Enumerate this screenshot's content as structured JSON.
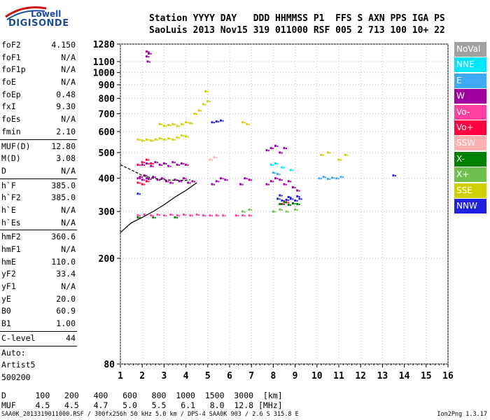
{
  "logo": {
    "line1": "Lowell",
    "line2": "DIGISONDE"
  },
  "header": {
    "labels": [
      "Station",
      "YYYY",
      "DAY",
      "DDD",
      "HHMMSS",
      "P1",
      "FFS",
      "S",
      "AXN",
      "PPS",
      "IGA",
      "PS"
    ],
    "values": [
      "SaoLuis",
      "2013",
      "Nov15",
      "319",
      "011000",
      "RSF",
      "005",
      "2",
      "713",
      "100",
      "10+",
      "22"
    ]
  },
  "params": {
    "group1": [
      {
        "name": "foF2",
        "value": "4.150"
      },
      {
        "name": "foF1",
        "value": "N/A"
      },
      {
        "name": "foF1p",
        "value": "N/A"
      },
      {
        "name": "foE",
        "value": "N/A"
      },
      {
        "name": "foEp",
        "value": "0.48"
      },
      {
        "name": "fxI",
        "value": "9.30"
      },
      {
        "name": "foEs",
        "value": "N/A"
      },
      {
        "name": "fmin",
        "value": "2.10"
      }
    ],
    "group2": [
      {
        "name": "MUF(D)",
        "value": "12.80"
      },
      {
        "name": "M(D)",
        "value": "3.08"
      },
      {
        "name": "D",
        "value": "N/A"
      }
    ],
    "group3": [
      {
        "name": "h`F",
        "value": "385.0"
      },
      {
        "name": "h`F2",
        "value": "385.0"
      },
      {
        "name": "h`E",
        "value": "N/A"
      },
      {
        "name": "h`Es",
        "value": "N/A"
      }
    ],
    "group4": [
      {
        "name": "hmF2",
        "value": "360.6"
      },
      {
        "name": "hmF1",
        "value": "N/A"
      },
      {
        "name": "hmE",
        "value": "110.0"
      },
      {
        "name": "yF2",
        "value": "33.4"
      },
      {
        "name": "yF1",
        "value": "N/A"
      },
      {
        "name": "yE",
        "value": "20.0"
      },
      {
        "name": "B0",
        "value": "60.9"
      },
      {
        "name": "B1",
        "value": "1.00"
      }
    ],
    "group5": [
      {
        "name": "C-level",
        "value": "44"
      }
    ],
    "group6": [
      "Auto:",
      "Artist5",
      "500200"
    ]
  },
  "legend": [
    {
      "label": "NoVal",
      "color": "#a0a0a0"
    },
    {
      "label": "NNE",
      "color": "#00e5ff"
    },
    {
      "label": "E",
      "color": "#3fa9f5"
    },
    {
      "label": "W",
      "color": "#a000a0"
    },
    {
      "label": "Vo-",
      "color": "#ff40a0"
    },
    {
      "label": "Vo+",
      "color": "#ff0040"
    },
    {
      "label": "SSW",
      "color": "#ffb0b0"
    },
    {
      "label": "X-",
      "color": "#008000"
    },
    {
      "label": "X+",
      "color": "#70c050"
    },
    {
      "label": "SSE",
      "color": "#d0d000"
    },
    {
      "label": "NNW",
      "color": "#2020e0"
    }
  ],
  "bottom_table": {
    "row1_label": "D",
    "row1_values": [
      "100",
      "200",
      "400",
      "600",
      "800",
      "1000",
      "1500",
      "3000",
      "[km]"
    ],
    "row2_label": "MUF",
    "row2_values": [
      "4.5",
      "4.5",
      "4.7",
      "5.0",
      "5.5",
      "6.1",
      "8.0",
      "12.8",
      "[MHz]"
    ]
  },
  "footer": {
    "left": "SAA0K_2013319011000.RSF / 300fx256h 50 kHz 5.0 km / DPS-4 SAA0K 903 / 2.6 S 315.8 E",
    "right": "Ion2Png 1.3.17"
  },
  "chart_data": {
    "type": "scatter",
    "xlim": [
      1,
      16
    ],
    "ylim": [
      80,
      1280
    ],
    "y_scale": "log",
    "x_ticks": [
      1,
      2,
      3,
      4,
      5,
      6,
      7,
      8,
      9,
      10,
      11,
      12,
      13,
      14,
      15,
      16
    ],
    "y_ticks": [
      80,
      200,
      300,
      400,
      500,
      600,
      700,
      800,
      900,
      1000,
      1100,
      1280
    ],
    "grid": true,
    "xlabel": "",
    "ylabel": "",
    "series": [
      {
        "name": "W",
        "color": "#a000a0",
        "points": [
          [
            1.8,
            400
          ],
          [
            1.9,
            405
          ],
          [
            2.0,
            395
          ],
          [
            2.1,
            410
          ],
          [
            2.2,
            400
          ],
          [
            2.3,
            398
          ],
          [
            2.5,
            405
          ],
          [
            2.7,
            395
          ],
          [
            2.9,
            400
          ],
          [
            3.1,
            390
          ],
          [
            3.3,
            385
          ],
          [
            3.5,
            395
          ],
          [
            3.7,
            390
          ],
          [
            3.9,
            400
          ],
          [
            4.1,
            385
          ],
          [
            4.3,
            390
          ],
          [
            2.0,
            450
          ],
          [
            2.2,
            455
          ],
          [
            2.4,
            445
          ],
          [
            2.6,
            460
          ],
          [
            2.8,
            450
          ],
          [
            3.0,
            455
          ],
          [
            3.2,
            445
          ],
          [
            3.4,
            460
          ],
          [
            3.6,
            450
          ],
          [
            3.8,
            455
          ],
          [
            4.0,
            450
          ],
          [
            2.2,
            1200
          ],
          [
            2.2,
            1150
          ],
          [
            2.25,
            1100
          ],
          [
            2.3,
            1180
          ],
          [
            5.2,
            380
          ],
          [
            5.4,
            390
          ],
          [
            5.6,
            400
          ],
          [
            5.8,
            395
          ],
          [
            6.5,
            380
          ],
          [
            6.7,
            400
          ],
          [
            6.9,
            395
          ],
          [
            7.7,
            380
          ],
          [
            7.9,
            390
          ],
          [
            8.1,
            400
          ],
          [
            8.3,
            395
          ],
          [
            8.5,
            380
          ],
          [
            8.7,
            390
          ],
          [
            8.9,
            370
          ],
          [
            9.1,
            360
          ],
          [
            7.7,
            510
          ],
          [
            7.9,
            520
          ],
          [
            8.1,
            530
          ],
          [
            8.3,
            500
          ],
          [
            8.5,
            520
          ]
        ]
      },
      {
        "name": "SSE",
        "color": "#d0d000",
        "points": [
          [
            2.8,
            640
          ],
          [
            3.0,
            630
          ],
          [
            3.2,
            635
          ],
          [
            3.4,
            640
          ],
          [
            3.6,
            630
          ],
          [
            3.8,
            640
          ],
          [
            4.0,
            650
          ],
          [
            4.2,
            645
          ],
          [
            1.8,
            560
          ],
          [
            2.0,
            555
          ],
          [
            2.2,
            560
          ],
          [
            2.4,
            555
          ],
          [
            2.6,
            560
          ],
          [
            2.8,
            565
          ],
          [
            3.0,
            560
          ],
          [
            3.2,
            565
          ],
          [
            3.4,
            560
          ],
          [
            3.6,
            570
          ],
          [
            3.8,
            580
          ],
          [
            4.0,
            575
          ],
          [
            4.4,
            700
          ],
          [
            4.6,
            720
          ],
          [
            4.8,
            760
          ],
          [
            5.0,
            780
          ],
          [
            4.9,
            850
          ],
          [
            6.6,
            650
          ],
          [
            6.8,
            640
          ],
          [
            10.2,
            490
          ],
          [
            10.5,
            500
          ],
          [
            11.0,
            470
          ],
          [
            11.3,
            490
          ]
        ]
      },
      {
        "name": "NNW",
        "color": "#2020e0",
        "points": [
          [
            8.2,
            335
          ],
          [
            8.4,
            330
          ],
          [
            8.6,
            332
          ],
          [
            8.8,
            335
          ],
          [
            9.0,
            330
          ],
          [
            9.2,
            335
          ],
          [
            8.3,
            345
          ],
          [
            8.7,
            340
          ],
          [
            9.1,
            342
          ],
          [
            5.2,
            650
          ],
          [
            5.4,
            655
          ],
          [
            5.6,
            660
          ],
          [
            13.5,
            410
          ],
          [
            1.8,
            350
          ]
        ]
      },
      {
        "name": "Vo+",
        "color": "#ff0040",
        "points": [
          [
            1.8,
            450
          ],
          [
            2.0,
            460
          ],
          [
            2.2,
            470
          ],
          [
            2.4,
            455
          ],
          [
            1.8,
            385
          ],
          [
            2.0,
            380
          ],
          [
            2.2,
            390
          ],
          [
            8.4,
            320
          ],
          [
            8.6,
            325
          ]
        ]
      },
      {
        "name": "X-",
        "color": "#008000",
        "points": [
          [
            8.3,
            320
          ],
          [
            8.5,
            325
          ],
          [
            8.7,
            318
          ],
          [
            8.9,
            322
          ],
          [
            9.1,
            320
          ],
          [
            1.8,
            285
          ],
          [
            2.5,
            285
          ],
          [
            3.5,
            285
          ]
        ]
      },
      {
        "name": "E",
        "color": "#3fa9f5",
        "points": [
          [
            10.1,
            400
          ],
          [
            10.3,
            405
          ],
          [
            10.5,
            398
          ],
          [
            10.7,
            402
          ],
          [
            10.9,
            400
          ],
          [
            11.1,
            405
          ],
          [
            8.0,
            420
          ],
          [
            8.2,
            415
          ]
        ]
      },
      {
        "name": "Vo-",
        "color": "#ff40a0",
        "points": [
          [
            1.8,
            290
          ],
          [
            2.1,
            292
          ],
          [
            2.4,
            290
          ],
          [
            2.7,
            292
          ],
          [
            3.0,
            290
          ],
          [
            3.3,
            292
          ],
          [
            3.6,
            290
          ],
          [
            3.9,
            292
          ],
          [
            4.2,
            290
          ],
          [
            4.5,
            292
          ],
          [
            4.8,
            290
          ],
          [
            5.1,
            290
          ],
          [
            5.4,
            290
          ],
          [
            5.7,
            290
          ],
          [
            6.3,
            290
          ],
          [
            6.6,
            290
          ],
          [
            6.9,
            290
          ]
        ]
      },
      {
        "name": "X+",
        "color": "#70c050",
        "points": [
          [
            8.0,
            300
          ],
          [
            8.3,
            305
          ],
          [
            8.6,
            300
          ],
          [
            9.0,
            305
          ],
          [
            6.6,
            300
          ],
          [
            6.9,
            305
          ]
        ]
      },
      {
        "name": "NNE",
        "color": "#00e5ff",
        "points": [
          [
            7.9,
            450
          ],
          [
            8.1,
            455
          ],
          [
            8.4,
            440
          ],
          [
            8.8,
            430
          ]
        ]
      },
      {
        "name": "SSW",
        "color": "#ffb0b0",
        "points": [
          [
            5.1,
            470
          ],
          [
            5.3,
            480
          ]
        ]
      }
    ],
    "profile_curve": [
      [
        1,
        250
      ],
      [
        1.5,
        272
      ],
      [
        2,
        285
      ],
      [
        2.5,
        300
      ],
      [
        3,
        318
      ],
      [
        3.5,
        340
      ],
      [
        4,
        360
      ],
      [
        4.5,
        385
      ]
    ],
    "trace_curve": [
      [
        1,
        450
      ],
      [
        1.5,
        430
      ],
      [
        2,
        410
      ],
      [
        2.5,
        400
      ],
      [
        3,
        395
      ],
      [
        3.5,
        393
      ],
      [
        4,
        393
      ],
      [
        4.2,
        395
      ]
    ]
  }
}
